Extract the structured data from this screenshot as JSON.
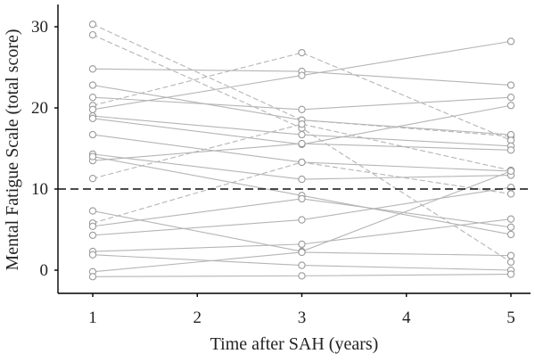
{
  "chart_data": {
    "type": "line",
    "xlabel": "Time after SAH (years)",
    "ylabel": "Mental Fatigue Scale (total score)",
    "x_ticks": [
      "1",
      "2",
      "3",
      "4",
      "5"
    ],
    "y_ticks": [
      "0",
      "10",
      "20",
      "30"
    ],
    "xlim": [
      0.5,
      5.2
    ],
    "ylim": [
      -1.5,
      33
    ],
    "grid": false,
    "reference_line": {
      "y": 10,
      "style": "dashed"
    },
    "x": [
      1,
      3,
      5
    ],
    "colors": {
      "series": "#b5b5b5",
      "marker": "#9a9a9a",
      "reference": "#111111"
    },
    "series": [
      {
        "values": [
          30.3,
          18.5,
          16.5
        ],
        "dashed": true
      },
      {
        "values": [
          29.0,
          17.5,
          1.0
        ],
        "dashed": true
      },
      {
        "values": [
          24.8,
          24.5,
          22.8
        ],
        "dashed": false
      },
      {
        "values": [
          22.8,
          18.5,
          16.7
        ],
        "dashed": false
      },
      {
        "values": [
          21.3,
          19.8,
          21.3
        ],
        "dashed": false
      },
      {
        "values": [
          20.3,
          26.8,
          16.0
        ],
        "dashed": true
      },
      {
        "values": [
          19.8,
          24.0,
          28.2
        ],
        "dashed": false
      },
      {
        "values": [
          19.0,
          16.7,
          15.3
        ],
        "dashed": false
      },
      {
        "values": [
          18.7,
          15.5,
          20.3
        ],
        "dashed": false
      },
      {
        "values": [
          16.7,
          13.3,
          12.2
        ],
        "dashed": false
      },
      {
        "values": [
          14.3,
          11.2,
          11.7
        ],
        "dashed": false
      },
      {
        "values": [
          13.5,
          15.6,
          14.8
        ],
        "dashed": false
      },
      {
        "values": [
          11.3,
          18.0,
          12.3
        ],
        "dashed": true
      },
      {
        "values": [
          14.0,
          9.2,
          4.4
        ],
        "dashed": false
      },
      {
        "values": [
          7.3,
          2.3,
          12.2
        ],
        "dashed": false
      },
      {
        "values": [
          5.8,
          13.3,
          9.4
        ],
        "dashed": true
      },
      {
        "values": [
          5.4,
          8.8,
          5.3
        ],
        "dashed": false
      },
      {
        "values": [
          4.3,
          6.2,
          10.2
        ],
        "dashed": false
      },
      {
        "values": [
          2.3,
          3.2,
          6.3
        ],
        "dashed": false
      },
      {
        "values": [
          1.9,
          0.6,
          0.0
        ],
        "dashed": false
      },
      {
        "values": [
          -0.2,
          2.2,
          1.8
        ],
        "dashed": false
      },
      {
        "values": [
          -0.8,
          -0.7,
          -0.5
        ],
        "dashed": false
      }
    ]
  }
}
